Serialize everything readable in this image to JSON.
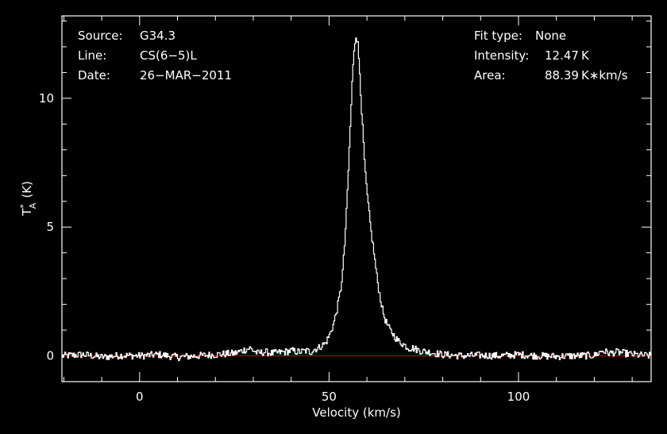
{
  "info_left": {
    "source_label": "Source:",
    "source_value": "G34.3",
    "line_label": "Line:",
    "line_value": "CS(6−5)L",
    "date_label": "Date:",
    "date_value": "26−MAR−2011"
  },
  "info_right": {
    "fit_label": "Fit type:",
    "fit_value": "None",
    "intensity_label": "Intensity:",
    "intensity_value": "12.47 K",
    "area_label": "Area:",
    "area_value": "88.39 K∗km/s"
  },
  "colors": {
    "background": "#000000",
    "foreground": "#ffffff",
    "baseline": "#cc0000"
  },
  "chart_data": {
    "type": "line",
    "xlabel": "Velocity (km/s)",
    "ylabel_main": "T",
    "ylabel_sup": "*",
    "ylabel_sub": "A",
    "ylabel_unit": "(K)",
    "xlim": [
      -20.5,
      135
    ],
    "ylim": [
      -1.0,
      13.2
    ],
    "xticks": [
      0,
      50,
      100
    ],
    "xtick_labels": [
      "0",
      "50",
      "100"
    ],
    "yticks": [
      0,
      5,
      10
    ],
    "ytick_labels": [
      "0",
      "5",
      "10"
    ],
    "baseline_y": 0,
    "series": [
      {
        "x": [
          -20.5,
          -15,
          -10,
          -5,
          0,
          5,
          10,
          15,
          20,
          25,
          29,
          30,
          31,
          33,
          35,
          38,
          40,
          42,
          44,
          45,
          46,
          47,
          48,
          49,
          50,
          51,
          52,
          53,
          53.5,
          54,
          54.5,
          55,
          55.5,
          56,
          56.5,
          57,
          57.5,
          58,
          58.5,
          59,
          59.5,
          60,
          60.5,
          61,
          61.5,
          62,
          62.5,
          63,
          63.5,
          64,
          64.5,
          65,
          66,
          67,
          68,
          69,
          70,
          71,
          72,
          73,
          74,
          76,
          78,
          80,
          85,
          90,
          95,
          100,
          105,
          110,
          115,
          120,
          122,
          124,
          126,
          130,
          135
        ],
        "y": [
          0.0,
          0.05,
          -0.05,
          0.02,
          0.0,
          0.05,
          -0.05,
          0.0,
          0.05,
          0.1,
          0.3,
          0.2,
          0.1,
          0.15,
          0.1,
          0.15,
          0.2,
          0.15,
          0.2,
          0.15,
          0.25,
          0.3,
          0.4,
          0.5,
          0.8,
          1.2,
          1.8,
          2.6,
          3.3,
          4.3,
          5.6,
          7.2,
          8.9,
          10.6,
          11.9,
          12.47,
          12.1,
          11.0,
          9.5,
          8.2,
          7.0,
          6.2,
          5.5,
          4.8,
          4.3,
          3.7,
          3.1,
          2.6,
          2.2,
          1.8,
          1.5,
          1.3,
          1.0,
          0.8,
          0.6,
          0.5,
          0.4,
          0.3,
          0.3,
          0.25,
          0.2,
          0.15,
          0.1,
          0.05,
          0.0,
          0.02,
          0.0,
          0.05,
          0.0,
          -0.02,
          0.0,
          0.02,
          0.2,
          0.1,
          0.15,
          0.05,
          0.0
        ]
      }
    ]
  }
}
